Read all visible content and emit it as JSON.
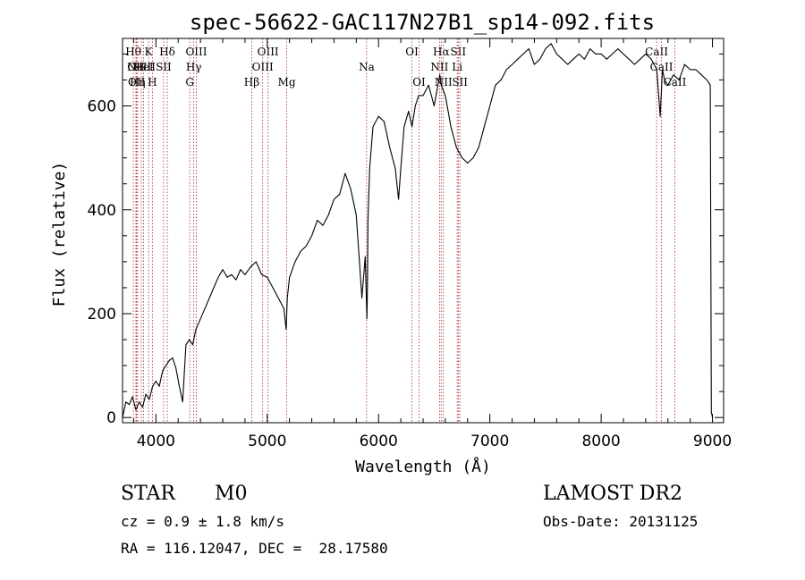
{
  "chart_data": {
    "type": "line",
    "title": "spec-56622-GAC117N27B1_sp14-092.fits",
    "xlabel": "Wavelength (Å)",
    "ylabel": "Flux (relative)",
    "xlim": [
      3700,
      9100
    ],
    "ylim": [
      -10,
      730
    ],
    "xticks": [
      4000,
      5000,
      6000,
      7000,
      8000,
      9000
    ],
    "yticks": [
      0,
      200,
      400,
      600
    ],
    "grid": false,
    "series": [
      {
        "x": [
          3700,
          3730,
          3760,
          3790,
          3820,
          3850,
          3880,
          3910,
          3940,
          3970,
          4000,
          4030,
          4060,
          4090,
          4120,
          4150,
          4180,
          4210,
          4240,
          4270,
          4300,
          4330,
          4360,
          4400,
          4440,
          4480,
          4520,
          4560,
          4600,
          4640,
          4680,
          4720,
          4760,
          4800,
          4850,
          4900,
          4950,
          5000,
          5050,
          5100,
          5150,
          5170,
          5180,
          5200,
          5250,
          5300,
          5350,
          5400,
          5450,
          5500,
          5550,
          5600,
          5650,
          5700,
          5750,
          5800,
          5850,
          5880,
          5895,
          5900,
          5905,
          5920,
          5950,
          6000,
          6050,
          6100,
          6150,
          6180,
          6200,
          6230,
          6270,
          6300,
          6330,
          6360,
          6400,
          6450,
          6500,
          6550,
          6563,
          6600,
          6650,
          6700,
          6750,
          6800,
          6850,
          6900,
          6950,
          7000,
          7050,
          7100,
          7150,
          7200,
          7250,
          7300,
          7350,
          7400,
          7450,
          7500,
          7550,
          7600,
          7650,
          7700,
          7750,
          7800,
          7850,
          7900,
          7950,
          8000,
          8050,
          8100,
          8150,
          8200,
          8250,
          8300,
          8350,
          8400,
          8450,
          8500,
          8530,
          8550,
          8570,
          8600,
          8650,
          8700,
          8750,
          8800,
          8850,
          8900,
          8950,
          8980,
          8990,
          9000
        ],
        "y": [
          0,
          30,
          25,
          40,
          15,
          30,
          20,
          45,
          35,
          60,
          70,
          60,
          90,
          100,
          110,
          115,
          95,
          60,
          30,
          140,
          150,
          140,
          170,
          190,
          210,
          230,
          250,
          270,
          285,
          270,
          275,
          265,
          285,
          275,
          290,
          300,
          275,
          270,
          250,
          230,
          210,
          170,
          230,
          270,
          300,
          320,
          330,
          350,
          380,
          370,
          390,
          420,
          430,
          470,
          440,
          390,
          230,
          310,
          190,
          250,
          380,
          480,
          560,
          580,
          570,
          520,
          480,
          420,
          480,
          560,
          590,
          560,
          600,
          620,
          620,
          640,
          600,
          660,
          640,
          620,
          560,
          520,
          500,
          490,
          500,
          520,
          560,
          600,
          640,
          650,
          670,
          680,
          690,
          700,
          710,
          680,
          690,
          710,
          720,
          700,
          690,
          680,
          690,
          700,
          690,
          710,
          700,
          700,
          690,
          700,
          710,
          700,
          690,
          680,
          690,
          700,
          690,
          670,
          580,
          670,
          650,
          640,
          660,
          650,
          680,
          670,
          670,
          660,
          650,
          640,
          10,
          0
        ]
      }
    ],
    "lines": [
      {
        "wl": 3797,
        "label": "Hθ",
        "row": 0
      },
      {
        "wl": 3820,
        "label": "OII",
        "row": 1
      },
      {
        "wl": 3826,
        "label": "OII",
        "row": 2
      },
      {
        "wl": 3835,
        "label": "Hη",
        "row": 2
      },
      {
        "wl": 3869,
        "label": "NeIII",
        "row": 1
      },
      {
        "wl": 3889,
        "label": "HeI",
        "row": 1
      },
      {
        "wl": 3934,
        "label": "K",
        "row": 0
      },
      {
        "wl": 3968,
        "label": "H",
        "row": 2
      },
      {
        "wl": 4069,
        "label": "SII",
        "row": 1
      },
      {
        "wl": 4102,
        "label": "Hδ",
        "row": 0
      },
      {
        "wl": 4304,
        "label": "G",
        "row": 2
      },
      {
        "wl": 4340,
        "label": "Hγ",
        "row": 1
      },
      {
        "wl": 4363,
        "label": "OIII",
        "row": 0
      },
      {
        "wl": 4861,
        "label": "Hβ",
        "row": 2
      },
      {
        "wl": 4959,
        "label": "OIII",
        "row": 1
      },
      {
        "wl": 5007,
        "label": "OIII",
        "row": 0
      },
      {
        "wl": 5175,
        "label": "Mg",
        "row": 2
      },
      {
        "wl": 5893,
        "label": "Na",
        "row": 1
      },
      {
        "wl": 6300,
        "label": "OI",
        "row": 0
      },
      {
        "wl": 6364,
        "label": "OI",
        "row": 2
      },
      {
        "wl": 6548,
        "label": "NII",
        "row": 1
      },
      {
        "wl": 6563,
        "label": "Hα",
        "row": 0
      },
      {
        "wl": 6583,
        "label": "NII",
        "row": 2
      },
      {
        "wl": 6707,
        "label": "Li",
        "row": 1
      },
      {
        "wl": 6716,
        "label": "SII",
        "row": 0
      },
      {
        "wl": 6731,
        "label": "SII",
        "row": 2
      },
      {
        "wl": 8498,
        "label": "CaII",
        "row": 0
      },
      {
        "wl": 8542,
        "label": "CaII",
        "row": 1
      },
      {
        "wl": 8662,
        "label": "CaII",
        "row": 2
      }
    ]
  },
  "info": {
    "class": "STAR",
    "subclass": "M0",
    "redshift": "cz = 0.9 ± 1.8 km/s",
    "coords": "RA = 116.12047, DEC =  28.17580",
    "survey": "LAMOST DR2",
    "obsdate": "Obs-Date: 20131125"
  }
}
